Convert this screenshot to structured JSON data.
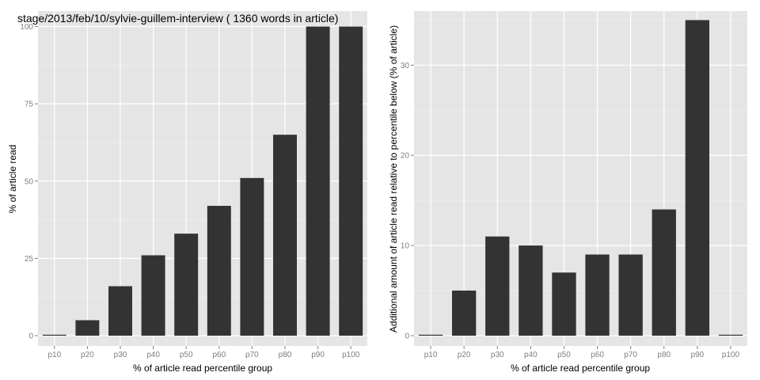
{
  "chart_data": [
    {
      "type": "bar",
      "title": "stage/2013/feb/10/sylvie-guillem-interview ( 1360 words in article)",
      "xlabel": "% of article read percentile group",
      "ylabel": "% of article read",
      "categories": [
        "p10",
        "p20",
        "p30",
        "p40",
        "p50",
        "p60",
        "p70",
        "p80",
        "p90",
        "p100"
      ],
      "values": [
        0,
        5,
        16,
        26,
        33,
        42,
        51,
        65,
        100,
        100
      ],
      "ylim": [
        0,
        105
      ],
      "yticks": [
        0,
        25,
        50,
        75,
        100
      ],
      "grid": true,
      "bar_color": "#333333",
      "panel_bg": "#e5e5e5"
    },
    {
      "type": "bar",
      "title": "",
      "xlabel": "% of article read percentile group",
      "ylabel": "Additional amount of article read relative to percentile below (% of article)",
      "categories": [
        "p10",
        "p20",
        "p30",
        "p40",
        "p50",
        "p60",
        "p70",
        "p80",
        "p90",
        "p100"
      ],
      "values": [
        0,
        5,
        11,
        10,
        7,
        9,
        9,
        14,
        35,
        0
      ],
      "ylim": [
        0,
        36
      ],
      "yticks": [
        0,
        10,
        20,
        30
      ],
      "grid": true,
      "bar_color": "#333333",
      "panel_bg": "#e5e5e5"
    }
  ]
}
